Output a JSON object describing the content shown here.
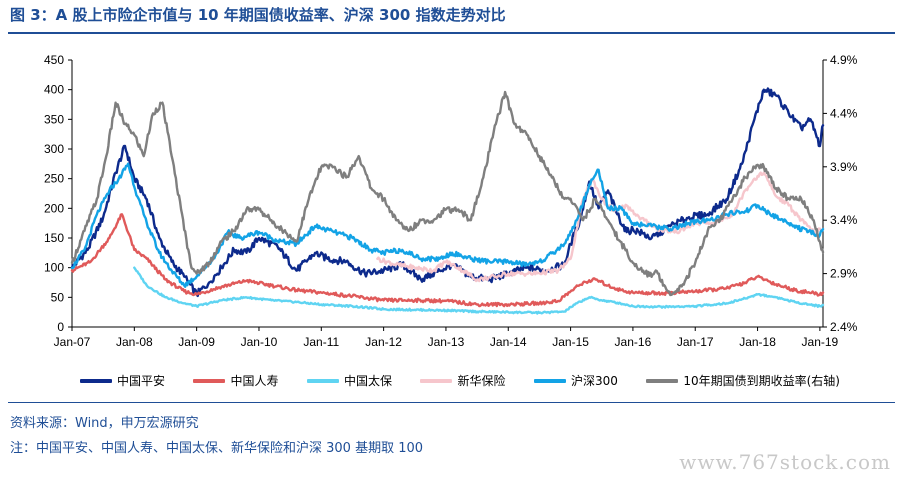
{
  "title": "图 3：A 股上市险企市值与 10 年期国债收益率、沪深 300 指数走势对比",
  "source": "资料来源：Wind，申万宏源研究",
  "note": "注：中国平安、中国人寿、中国太保、新华保险和沪深 300 基期取 100",
  "watermark": "www.767stock.com",
  "chart_data": {
    "type": "line",
    "x_tick_labels": [
      "Jan-07",
      "Jan-08",
      "Jan-09",
      "Jan-10",
      "Jan-11",
      "Jan-12",
      "Jan-13",
      "Jan-14",
      "Jan-15",
      "Jan-16",
      "Jan-17",
      "Jan-18",
      "Jan-19"
    ],
    "y_left": {
      "ticks": [
        "0",
        "50",
        "100",
        "150",
        "200",
        "250",
        "300",
        "350",
        "400",
        "450"
      ],
      "range": [
        0,
        450
      ]
    },
    "y_right": {
      "ticks": [
        "2.4%",
        "2.9%",
        "3.4%",
        "3.9%",
        "4.4%",
        "4.9%"
      ],
      "range": [
        2.4,
        4.9
      ]
    },
    "series": [
      {
        "name": "中国平安",
        "axis": "left",
        "color": "#0d2a8c",
        "x": [
          2007,
          2007.25,
          2007.5,
          2007.7,
          2007.85,
          2008,
          2008.2,
          2008.4,
          2008.6,
          2008.8,
          2009,
          2009.2,
          2009.4,
          2009.6,
          2009.8,
          2010,
          2010.3,
          2010.6,
          2010.9,
          2011.1,
          2011.4,
          2011.7,
          2012,
          2012.3,
          2012.6,
          2012.9,
          2013.1,
          2013.4,
          2013.7,
          2014,
          2014.3,
          2014.6,
          2014.9,
          2015,
          2015.15,
          2015.3,
          2015.45,
          2015.6,
          2015.75,
          2015.9,
          2016,
          2016.3,
          2016.6,
          2016.9,
          2017.2,
          2017.5,
          2017.75,
          2017.95,
          2018.1,
          2018.3,
          2018.5,
          2018.7,
          2018.85,
          2019,
          2019.05
        ],
        "values": [
          100,
          130,
          185,
          260,
          305,
          250,
          215,
          150,
          110,
          85,
          55,
          75,
          100,
          130,
          125,
          150,
          135,
          95,
          125,
          115,
          110,
          90,
          95,
          105,
          80,
          95,
          105,
          85,
          80,
          90,
          100,
          95,
          105,
          140,
          180,
          245,
          200,
          230,
          190,
          160,
          165,
          150,
          170,
          185,
          190,
          215,
          275,
          350,
          400,
          390,
          360,
          335,
          350,
          305,
          340
        ]
      },
      {
        "name": "中国人寿",
        "axis": "left",
        "color": "#e05a5a",
        "x": [
          2007,
          2007.3,
          2007.6,
          2007.8,
          2008,
          2008.2,
          2008.5,
          2008.8,
          2009,
          2009.4,
          2009.8,
          2010.2,
          2010.6,
          2011,
          2011.5,
          2012,
          2012.5,
          2013,
          2013.5,
          2014,
          2014.5,
          2014.8,
          2015,
          2015.2,
          2015.4,
          2015.6,
          2015.8,
          2016,
          2016.5,
          2017,
          2017.5,
          2017.8,
          2018,
          2018.3,
          2018.6,
          2019,
          2019.05
        ],
        "values": [
          95,
          110,
          150,
          190,
          130,
          115,
          80,
          60,
          55,
          68,
          78,
          70,
          62,
          58,
          52,
          45,
          45,
          44,
          38,
          38,
          40,
          44,
          60,
          75,
          80,
          70,
          62,
          58,
          57,
          60,
          65,
          75,
          85,
          72,
          62,
          55,
          58
        ]
      },
      {
        "name": "中国太保",
        "axis": "left",
        "color": "#5fd4f2",
        "x": [
          2008,
          2008.2,
          2008.5,
          2008.8,
          2009,
          2009.4,
          2009.8,
          2010.2,
          2010.6,
          2011,
          2011.5,
          2012,
          2012.5,
          2013,
          2013.5,
          2014,
          2014.5,
          2014.9,
          2015.1,
          2015.3,
          2015.5,
          2015.8,
          2016,
          2016.5,
          2017,
          2017.5,
          2017.8,
          2018,
          2018.3,
          2018.6,
          2019,
          2019.05
        ],
        "values": [
          100,
          70,
          50,
          40,
          35,
          45,
          50,
          45,
          42,
          38,
          35,
          30,
          29,
          28,
          26,
          25,
          24,
          26,
          40,
          50,
          45,
          40,
          35,
          34,
          35,
          40,
          48,
          55,
          50,
          42,
          35,
          37
        ]
      },
      {
        "name": "新华保险",
        "axis": "left",
        "color": "#f6c6cc",
        "x": [
          2011.9,
          2012.2,
          2012.5,
          2012.8,
          2013,
          2013.2,
          2013.5,
          2013.8,
          2014,
          2014.4,
          2014.8,
          2015,
          2015.2,
          2015.35,
          2015.5,
          2015.7,
          2015.9,
          2016.1,
          2016.4,
          2016.7,
          2017,
          2017.3,
          2017.6,
          2017.8,
          2017.95,
          2018.1,
          2018.3,
          2018.5,
          2018.7,
          2018.9,
          2019.05
        ],
        "values": [
          115,
          105,
          100,
          95,
          110,
          100,
          80,
          85,
          90,
          90,
          95,
          115,
          215,
          250,
          215,
          195,
          205,
          185,
          165,
          160,
          175,
          175,
          190,
          230,
          250,
          260,
          220,
          205,
          180,
          160,
          165
        ]
      },
      {
        "name": "沪深300",
        "axis": "left",
        "color": "#13a3e6",
        "x": [
          2007,
          2007.2,
          2007.4,
          2007.6,
          2007.75,
          2007.9,
          2008.05,
          2008.2,
          2008.4,
          2008.6,
          2008.8,
          2009,
          2009.3,
          2009.5,
          2009.7,
          2010,
          2010.3,
          2010.6,
          2010.9,
          2011.2,
          2011.5,
          2011.8,
          2012,
          2012.3,
          2012.6,
          2012.9,
          2013.1,
          2013.4,
          2013.7,
          2014,
          2014.3,
          2014.6,
          2014.9,
          2015.1,
          2015.3,
          2015.45,
          2015.6,
          2015.8,
          2016,
          2016.3,
          2016.6,
          2016.9,
          2017.2,
          2017.5,
          2017.8,
          2018,
          2018.2,
          2018.5,
          2018.8,
          2019,
          2019.05
        ],
        "values": [
          100,
          130,
          190,
          230,
          250,
          275,
          220,
          175,
          125,
          95,
          70,
          85,
          120,
          160,
          150,
          160,
          145,
          140,
          170,
          160,
          150,
          130,
          125,
          130,
          115,
          115,
          125,
          115,
          110,
          110,
          105,
          115,
          140,
          180,
          240,
          265,
          200,
          200,
          175,
          170,
          165,
          175,
          180,
          190,
          195,
          205,
          190,
          175,
          160,
          155,
          165
        ]
      },
      {
        "name": "10年期国债到期收益率(右轴)",
        "axis": "right",
        "color": "#7f7f7f",
        "x": [
          2007,
          2007.2,
          2007.4,
          2007.55,
          2007.7,
          2007.85,
          2008,
          2008.15,
          2008.3,
          2008.45,
          2008.6,
          2008.75,
          2008.9,
          2009,
          2009.2,
          2009.4,
          2009.6,
          2009.8,
          2010,
          2010.2,
          2010.4,
          2010.6,
          2010.8,
          2011,
          2011.2,
          2011.4,
          2011.6,
          2011.8,
          2012,
          2012.2,
          2012.4,
          2012.6,
          2012.8,
          2013,
          2013.2,
          2013.4,
          2013.6,
          2013.8,
          2013.95,
          2014.1,
          2014.3,
          2014.5,
          2014.7,
          2014.9,
          2015,
          2015.2,
          2015.4,
          2015.6,
          2015.8,
          2016,
          2016.2,
          2016.4,
          2016.6,
          2016.8,
          2017,
          2017.2,
          2017.4,
          2017.6,
          2017.8,
          2017.95,
          2018.1,
          2018.3,
          2018.5,
          2018.7,
          2018.9,
          2019,
          2019.05
        ],
        "values": [
          3.0,
          3.3,
          3.6,
          4.0,
          4.5,
          4.3,
          4.2,
          4.0,
          4.4,
          4.5,
          4.0,
          3.5,
          3.0,
          2.9,
          3.0,
          3.2,
          3.3,
          3.5,
          3.5,
          3.4,
          3.3,
          3.2,
          3.6,
          3.9,
          3.9,
          3.8,
          4.0,
          3.7,
          3.6,
          3.4,
          3.3,
          3.4,
          3.4,
          3.5,
          3.5,
          3.4,
          3.8,
          4.3,
          4.6,
          4.3,
          4.2,
          4.0,
          3.8,
          3.6,
          3.6,
          3.4,
          3.6,
          3.4,
          3.2,
          3.0,
          2.9,
          2.9,
          2.7,
          2.8,
          3.0,
          3.3,
          3.4,
          3.6,
          3.8,
          3.9,
          3.9,
          3.7,
          3.6,
          3.6,
          3.4,
          3.2,
          3.1
        ]
      }
    ]
  }
}
